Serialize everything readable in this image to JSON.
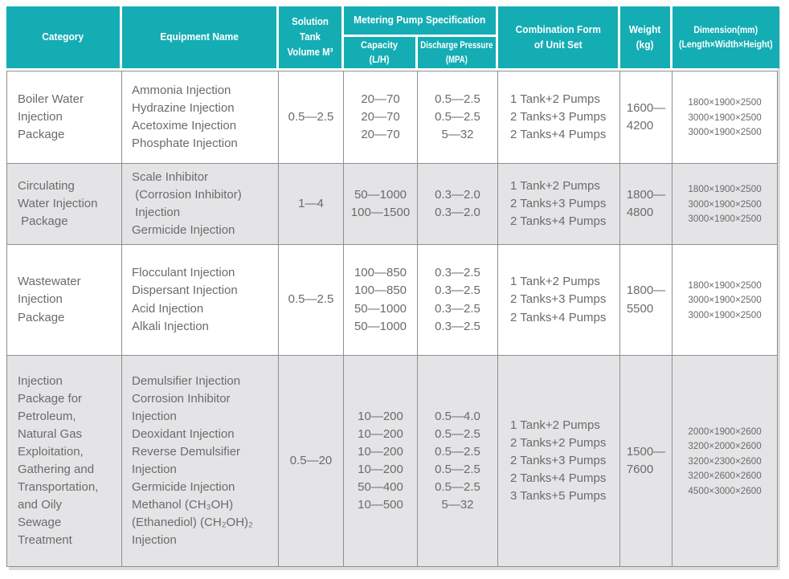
{
  "colors": {
    "header_bg": "#15ADB4",
    "header_text": "#FFFFFF",
    "alt_row_bg": "#E4E4E6",
    "border": "#8F8F8F",
    "body_text": "#6B6B6B"
  },
  "table": {
    "header": {
      "category": "Category",
      "equipment": "Equipment Name",
      "tank": "Solution Tank\nVolume M³",
      "pump_spec": "Metering Pump Specification",
      "capacity": "Capacity\n(L/H)",
      "pressure_line1": "Discharge Pressure",
      "pressure_line2": "(MPA)",
      "combination": "Combination Form\nof Unit Set",
      "weight": "Weight\n(kg)",
      "dimension": "Dimension(mm)\n(Length×Width×Height)"
    },
    "rows": [
      {
        "category": "Boiler Water\nInjection\nPackage",
        "equipment": "Ammonia Injection\nHydrazine Injection\nAcetoxime Injection\nPhosphate Injection",
        "volume": "0.5—2.5",
        "capacity": "20—70\n20—70\n20—70",
        "pressure": "0.5—2.5\n0.5—2.5\n5—32",
        "combination": "1 Tank+2 Pumps\n2 Tanks+3 Pumps\n2 Tanks+4 Pumps",
        "weight": "1600—\n4200",
        "dimension": "1800×1900×2500\n3000×1900×2500\n3000×1900×2500"
      },
      {
        "category": "Circulating\nWater Injection\n Package",
        "equipment": "Scale Inhibitor\n (Corrosion Inhibitor)\n Injection\nGermicide Injection",
        "volume": "1—4",
        "capacity": "50—1000\n100—1500",
        "pressure": "0.3—2.0\n0.3—2.0",
        "combination": "1 Tank+2 Pumps\n2 Tanks+3 Pumps\n2 Tanks+4 Pumps",
        "weight": "1800—\n4800",
        "dimension": "1800×1900×2500\n3000×1900×2500\n3000×1900×2500"
      },
      {
        "category": "Wastewater\nInjection\nPackage",
        "equipment": "Flocculant Injection\nDispersant Injection\nAcid Injection\nAlkali Injection",
        "volume": "0.5—2.5",
        "capacity": "100—850\n100—850\n50—1000\n50—1000",
        "pressure": "0.3—2.5\n0.3—2.5\n0.3—2.5\n0.3—2.5",
        "combination": "1 Tank+2 Pumps\n2 Tanks+3 Pumps\n2 Tanks+4 Pumps",
        "weight": "1800—\n5500",
        "dimension": "1800×1900×2500\n3000×1900×2500\n3000×1900×2500"
      },
      {
        "category": "Injection\nPackage for\nPetroleum,\nNatural Gas\nExploitation,\nGathering and\nTransportation,\nand Oily\nSewage\nTreatment",
        "equipment": "Demulsifier Injection\nCorrosion Inhibitor\nInjection\nDeoxidant Injection\nReverse Demulsifier\nInjection\nGermicide Injection\nMethanol (CH₃OH)\n(Ethanediol) (CH₂OH)₂\nInjection",
        "volume": "0.5—20",
        "capacity": "10—200\n10—200\n10—200\n10—200\n50—400\n10—500",
        "pressure": "0.5—4.0\n0.5—2.5\n0.5—2.5\n0.5—2.5\n0.5—2.5\n5—32",
        "combination": "1 Tank+2 Pumps\n2 Tanks+2 Pumps\n2 Tanks+3 Pumps\n2 Tanks+4 Pumps\n3 Tanks+5 Pumps",
        "weight": "1500—\n7600",
        "dimension": "2000×1900×2600\n3200×2000×2600\n3200×2300×2600\n3200×2600×2600\n4500×3000×2600"
      }
    ]
  }
}
